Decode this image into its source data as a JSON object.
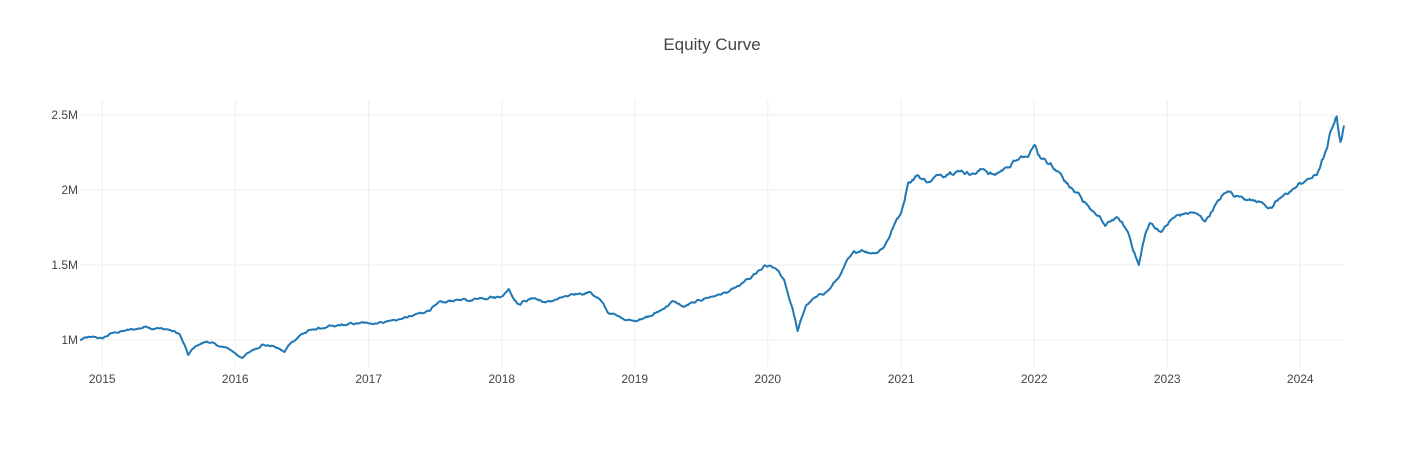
{
  "chart_data": {
    "type": "line",
    "title": "Equity Curve",
    "xlabel": "",
    "ylabel": "",
    "x_type": "date",
    "xlim": [
      "2014-11-01",
      "2024-04-30"
    ],
    "ylim": [
      820000,
      2600000
    ],
    "x_ticks": [
      {
        "date": "2015-01-01",
        "label": "2015"
      },
      {
        "date": "2016-01-01",
        "label": "2016"
      },
      {
        "date": "2017-01-01",
        "label": "2017"
      },
      {
        "date": "2018-01-01",
        "label": "2018"
      },
      {
        "date": "2019-01-01",
        "label": "2019"
      },
      {
        "date": "2020-01-01",
        "label": "2020"
      },
      {
        "date": "2021-01-01",
        "label": "2021"
      },
      {
        "date": "2022-01-01",
        "label": "2022"
      },
      {
        "date": "2023-01-01",
        "label": "2023"
      },
      {
        "date": "2024-01-01",
        "label": "2024"
      }
    ],
    "y_ticks": [
      {
        "value": 1000000,
        "label": "1M"
      },
      {
        "value": 1500000,
        "label": "1.5M"
      },
      {
        "value": 2000000,
        "label": "2M"
      },
      {
        "value": 2500000,
        "label": "2.5M"
      }
    ],
    "grid": true,
    "legend": "none",
    "line_color": "#1f77b4",
    "series": [
      {
        "x": [
          "2014-11-01",
          "2014-12-01",
          "2015-01-01",
          "2015-02-01",
          "2015-03-01",
          "2015-04-01",
          "2015-05-01",
          "2015-06-01",
          "2015-07-01",
          "2015-08-01",
          "2015-08-25",
          "2015-09-15",
          "2015-10-15",
          "2015-11-15",
          "2015-12-15",
          "2016-01-20",
          "2016-02-15",
          "2016-03-15",
          "2016-04-15",
          "2016-05-15",
          "2016-06-01",
          "2016-07-01",
          "2016-08-01",
          "2016-09-01",
          "2016-10-01",
          "2016-11-01",
          "2016-12-01",
          "2017-01-01",
          "2017-02-01",
          "2017-03-01",
          "2017-04-01",
          "2017-05-01",
          "2017-06-01",
          "2017-07-01",
          "2017-08-01",
          "2017-09-01",
          "2017-10-01",
          "2017-11-01",
          "2017-12-01",
          "2018-01-01",
          "2018-01-20",
          "2018-02-15",
          "2018-03-01",
          "2018-04-01",
          "2018-05-01",
          "2018-06-01",
          "2018-07-01",
          "2018-08-01",
          "2018-09-01",
          "2018-10-01",
          "2018-10-20",
          "2018-11-15",
          "2018-12-25",
          "2019-01-15",
          "2019-02-15",
          "2019-03-15",
          "2019-04-15",
          "2019-05-15",
          "2019-06-15",
          "2019-07-15",
          "2019-08-15",
          "2019-09-15",
          "2019-10-15",
          "2019-11-15",
          "2019-12-15",
          "2020-01-01",
          "2020-01-20",
          "2020-02-15",
          "2020-03-10",
          "2020-03-23",
          "2020-04-15",
          "2020-05-15",
          "2020-06-15",
          "2020-07-15",
          "2020-08-15",
          "2020-09-15",
          "2020-10-15",
          "2020-11-15",
          "2020-12-15",
          "2021-01-01",
          "2021-01-20",
          "2021-02-15",
          "2021-03-15",
          "2021-04-15",
          "2021-05-15",
          "2021-06-15",
          "2021-07-15",
          "2021-08-15",
          "2021-09-15",
          "2021-10-15",
          "2021-11-15",
          "2021-12-15",
          "2022-01-03",
          "2022-01-20",
          "2022-02-15",
          "2022-03-15",
          "2022-04-15",
          "2022-05-15",
          "2022-06-15",
          "2022-07-15",
          "2022-08-15",
          "2022-09-15",
          "2022-10-15",
          "2022-11-01",
          "2022-11-15",
          "2022-12-15",
          "2023-01-15",
          "2023-02-15",
          "2023-03-15",
          "2023-04-15",
          "2023-05-15",
          "2023-06-15",
          "2023-07-15",
          "2023-08-15",
          "2023-09-15",
          "2023-10-15",
          "2023-11-15",
          "2023-12-15",
          "2024-01-15",
          "2024-02-15",
          "2024-03-15",
          "2024-03-28",
          "2024-04-10",
          "2024-04-20",
          "2024-04-30"
        ],
        "y": [
          1000000,
          1020000,
          1010000,
          1050000,
          1060000,
          1070000,
          1090000,
          1080000,
          1070000,
          1040000,
          900000,
          960000,
          990000,
          960000,
          940000,
          880000,
          930000,
          970000,
          960000,
          920000,
          980000,
          1040000,
          1070000,
          1080000,
          1090000,
          1100000,
          1110000,
          1110000,
          1120000,
          1130000,
          1140000,
          1160000,
          1180000,
          1230000,
          1250000,
          1270000,
          1260000,
          1280000,
          1290000,
          1290000,
          1340000,
          1240000,
          1260000,
          1280000,
          1250000,
          1270000,
          1290000,
          1310000,
          1320000,
          1260000,
          1180000,
          1160000,
          1130000,
          1140000,
          1160000,
          1200000,
          1260000,
          1220000,
          1250000,
          1280000,
          1300000,
          1320000,
          1360000,
          1410000,
          1470000,
          1490000,
          1480000,
          1400000,
          1200000,
          1060000,
          1230000,
          1290000,
          1330000,
          1420000,
          1560000,
          1600000,
          1580000,
          1620000,
          1780000,
          1850000,
          2050000,
          2100000,
          2050000,
          2100000,
          2120000,
          2130000,
          2110000,
          2140000,
          2100000,
          2150000,
          2200000,
          2220000,
          2300000,
          2210000,
          2180000,
          2110000,
          2010000,
          1920000,
          1850000,
          1760000,
          1820000,
          1720000,
          1500000,
          1700000,
          1780000,
          1720000,
          1810000,
          1840000,
          1850000,
          1790000,
          1910000,
          1990000,
          1960000,
          1940000,
          1920000,
          1880000,
          1960000,
          2010000,
          2060000,
          2100000,
          2280000,
          2410000,
          2490000,
          2320000,
          2430000
        ]
      }
    ]
  }
}
